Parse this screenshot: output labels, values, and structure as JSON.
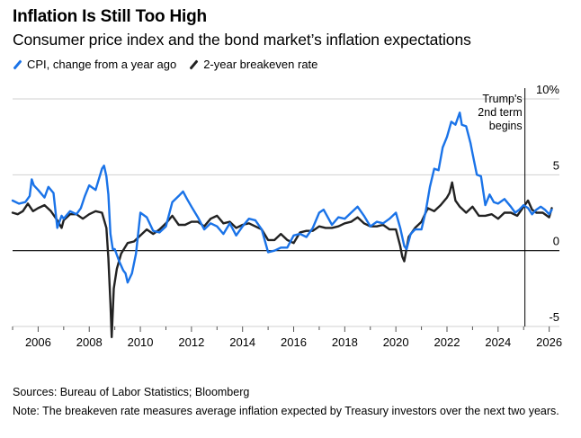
{
  "title": "Inflation Is Still Too High",
  "subtitle": "Consumer price index and the bond market’s inflation expectations",
  "legend": {
    "cpi": "CPI, change from a year ago",
    "breakeven": "2-year breakeven rate"
  },
  "colors": {
    "cpi": "#1a73e8",
    "breakeven": "#222222",
    "grid": "#d0d0d0",
    "zero": "#000000"
  },
  "sources": "Sources: Bureau of Labor Statistics; Bloomberg",
  "note": "Note: The breakeven rate measures average inflation expected by Treasury investors over the next two years.",
  "chart_data": {
    "type": "line",
    "title": "Inflation Is Still Too High",
    "xlabel": "",
    "ylabel": "",
    "xlim": [
      2005.0,
      2026.4
    ],
    "ylim": [
      -5,
      10
    ],
    "y_ticks": [
      10,
      5,
      0,
      -5
    ],
    "y_tick_labels": [
      "10%",
      "5",
      "0",
      "-5"
    ],
    "x_ticks": [
      2006,
      2008,
      2010,
      2012,
      2014,
      2016,
      2018,
      2020,
      2022,
      2024,
      2026
    ],
    "x_tick_labels": [
      "2006",
      "2008",
      "2010",
      "2012",
      "2014",
      "2016",
      "2018",
      "2020",
      "2022",
      "2024",
      "2026"
    ],
    "grid": true,
    "legend_position": "top-left",
    "annotation": {
      "x": 2025.05,
      "label": [
        "Trump's",
        "2nd term",
        "begins"
      ]
    },
    "series": [
      {
        "name": "CPI, change from a year ago",
        "key": "cpi",
        "x": [
          2005.0,
          2005.25,
          2005.5,
          2005.67,
          2005.75,
          2005.83,
          2006.0,
          2006.25,
          2006.4,
          2006.6,
          2006.75,
          2006.92,
          2007.0,
          2007.25,
          2007.5,
          2007.67,
          2007.83,
          2008.0,
          2008.25,
          2008.5,
          2008.58,
          2008.67,
          2008.75,
          2008.83,
          2008.92,
          2009.0,
          2009.17,
          2009.33,
          2009.42,
          2009.5,
          2009.67,
          2009.83,
          2010.0,
          2010.25,
          2010.5,
          2010.75,
          2011.0,
          2011.25,
          2011.5,
          2011.67,
          2011.83,
          2012.0,
          2012.25,
          2012.5,
          2012.75,
          2013.0,
          2013.25,
          2013.5,
          2013.75,
          2014.0,
          2014.25,
          2014.5,
          2014.75,
          2015.0,
          2015.25,
          2015.5,
          2015.75,
          2016.0,
          2016.25,
          2016.5,
          2016.75,
          2017.0,
          2017.17,
          2017.5,
          2017.75,
          2018.0,
          2018.25,
          2018.5,
          2018.75,
          2019.0,
          2019.25,
          2019.5,
          2019.75,
          2020.0,
          2020.17,
          2020.33,
          2020.42,
          2020.58,
          2020.75,
          2021.0,
          2021.17,
          2021.33,
          2021.5,
          2021.67,
          2021.83,
          2022.0,
          2022.17,
          2022.33,
          2022.5,
          2022.58,
          2022.75,
          2022.92,
          2023.0,
          2023.17,
          2023.33,
          2023.5,
          2023.67,
          2023.83,
          2024.0,
          2024.25,
          2024.5,
          2024.67,
          2024.83,
          2025.0,
          2025.17,
          2025.33,
          2025.5,
          2025.67,
          2025.83,
          2026.0,
          2026.1
        ],
        "values": [
          3.3,
          3.1,
          3.2,
          3.6,
          4.7,
          4.3,
          4.0,
          3.5,
          4.2,
          3.8,
          1.5,
          2.3,
          2.1,
          2.6,
          2.4,
          2.8,
          3.6,
          4.3,
          4.0,
          5.4,
          5.6,
          4.9,
          3.7,
          1.1,
          0.1,
          0.1,
          -0.7,
          -1.3,
          -1.5,
          -2.1,
          -1.5,
          -0.2,
          2.5,
          2.2,
          1.3,
          1.2,
          1.6,
          3.2,
          3.6,
          3.9,
          3.4,
          2.9,
          2.2,
          1.4,
          1.8,
          1.6,
          1.1,
          1.8,
          1.0,
          1.6,
          2.1,
          2.0,
          1.4,
          -0.1,
          0.0,
          0.2,
          0.2,
          1.0,
          1.1,
          0.9,
          1.5,
          2.5,
          2.7,
          1.7,
          2.2,
          2.1,
          2.5,
          2.9,
          2.3,
          1.6,
          1.9,
          1.8,
          2.1,
          2.5,
          1.5,
          0.3,
          0.1,
          1.1,
          1.4,
          1.4,
          2.6,
          4.2,
          5.4,
          5.3,
          6.8,
          7.5,
          8.5,
          8.3,
          9.1,
          8.3,
          8.2,
          7.1,
          6.4,
          5.0,
          4.9,
          3.0,
          3.7,
          3.2,
          3.1,
          3.4,
          2.9,
          2.5,
          2.7,
          3.0,
          2.8,
          2.4,
          2.7,
          2.9,
          2.7,
          2.4,
          2.7
        ]
      },
      {
        "name": "2-year breakeven rate",
        "key": "breakeven",
        "x": [
          2005.0,
          2005.2,
          2005.4,
          2005.6,
          2005.8,
          2006.0,
          2006.25,
          2006.5,
          2006.75,
          2006.92,
          2007.0,
          2007.25,
          2007.5,
          2007.75,
          2008.0,
          2008.25,
          2008.5,
          2008.67,
          2008.75,
          2008.83,
          2008.88,
          2008.96,
          2009.08,
          2009.25,
          2009.5,
          2009.75,
          2010.0,
          2010.25,
          2010.5,
          2010.75,
          2011.0,
          2011.25,
          2011.5,
          2011.75,
          2012.0,
          2012.25,
          2012.5,
          2012.75,
          2013.0,
          2013.25,
          2013.5,
          2013.75,
          2014.0,
          2014.25,
          2014.5,
          2014.75,
          2015.0,
          2015.25,
          2015.5,
          2015.75,
          2016.0,
          2016.25,
          2016.5,
          2016.75,
          2017.0,
          2017.25,
          2017.5,
          2017.75,
          2018.0,
          2018.25,
          2018.5,
          2018.75,
          2019.0,
          2019.25,
          2019.5,
          2019.75,
          2020.0,
          2020.17,
          2020.25,
          2020.33,
          2020.5,
          2020.75,
          2021.0,
          2021.25,
          2021.5,
          2021.75,
          2022.0,
          2022.1,
          2022.2,
          2022.33,
          2022.5,
          2022.75,
          2023.0,
          2023.25,
          2023.5,
          2023.75,
          2024.0,
          2024.25,
          2024.5,
          2024.75,
          2025.0,
          2025.17,
          2025.33,
          2025.5,
          2025.75,
          2026.0,
          2026.1
        ],
        "values": [
          2.5,
          2.4,
          2.6,
          3.1,
          2.6,
          2.8,
          3.0,
          2.6,
          2.0,
          1.5,
          2.0,
          2.4,
          2.4,
          2.1,
          2.4,
          2.6,
          2.5,
          1.5,
          -0.5,
          -3.5,
          -5.7,
          -2.5,
          -1.2,
          -0.2,
          0.5,
          0.6,
          1.0,
          1.4,
          1.1,
          1.4,
          1.8,
          2.3,
          1.7,
          1.7,
          1.9,
          1.9,
          1.6,
          2.1,
          2.3,
          1.8,
          1.9,
          1.5,
          1.7,
          1.8,
          1.6,
          1.4,
          0.7,
          0.7,
          1.1,
          0.7,
          0.5,
          1.2,
          1.3,
          1.3,
          1.6,
          1.5,
          1.5,
          1.6,
          1.8,
          1.9,
          2.2,
          1.8,
          1.6,
          1.6,
          1.7,
          1.4,
          1.4,
          0.3,
          -0.4,
          -0.7,
          0.9,
          1.5,
          1.9,
          2.8,
          2.6,
          3.0,
          3.5,
          3.8,
          4.5,
          3.3,
          2.9,
          2.5,
          2.9,
          2.3,
          2.3,
          2.4,
          2.1,
          2.5,
          2.5,
          2.3,
          2.9,
          3.3,
          2.7,
          2.5,
          2.5,
          2.2,
          2.8
        ]
      }
    ]
  }
}
